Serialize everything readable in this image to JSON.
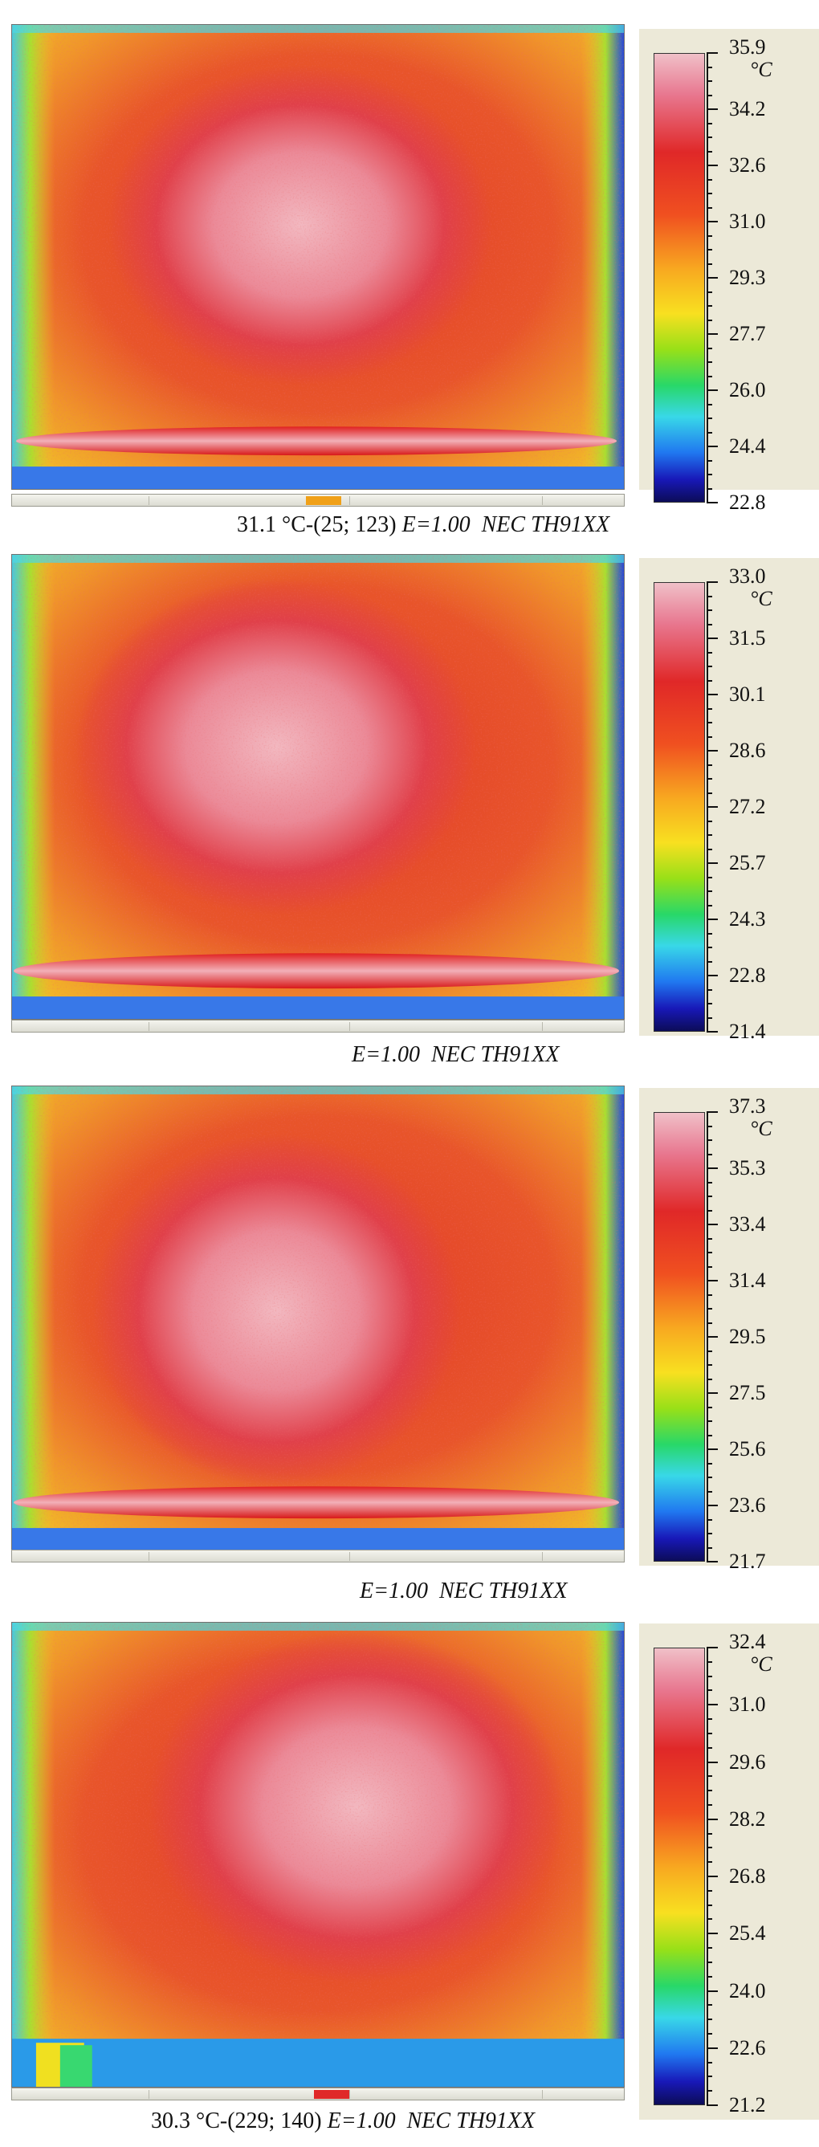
{
  "panels": [
    {
      "scale": [
        "35.9",
        "34.2",
        "32.6",
        "31.0",
        "29.3",
        "27.7",
        "26.0",
        "24.4",
        "22.8"
      ],
      "unit": "°C",
      "caption": {
        "reading": "31.1 °C-(25; 123)",
        "emissivity": "E=1.00",
        "camera": "NEC TH91XX"
      }
    },
    {
      "scale": [
        "33.0",
        "31.5",
        "30.1",
        "28.6",
        "27.2",
        "25.7",
        "24.3",
        "22.8",
        "21.4"
      ],
      "unit": "°C",
      "caption": {
        "reading": "",
        "emissivity": "E=1.00",
        "camera": "NEC TH91XX"
      }
    },
    {
      "scale": [
        "37.3",
        "35.3",
        "33.4",
        "31.4",
        "29.5",
        "27.5",
        "25.6",
        "23.6",
        "21.7"
      ],
      "unit": "°C",
      "caption": {
        "reading": "",
        "emissivity": "E=1.00",
        "camera": "NEC TH91XX"
      }
    },
    {
      "scale": [
        "32.4",
        "31.0",
        "29.6",
        "28.2",
        "26.8",
        "25.4",
        "24.0",
        "22.6",
        "21.2"
      ],
      "unit": "°C",
      "caption": {
        "reading": "30.3 °C-(229; 140)",
        "emissivity": "E=1.00",
        "camera": "NEC TH91XX"
      }
    }
  ]
}
